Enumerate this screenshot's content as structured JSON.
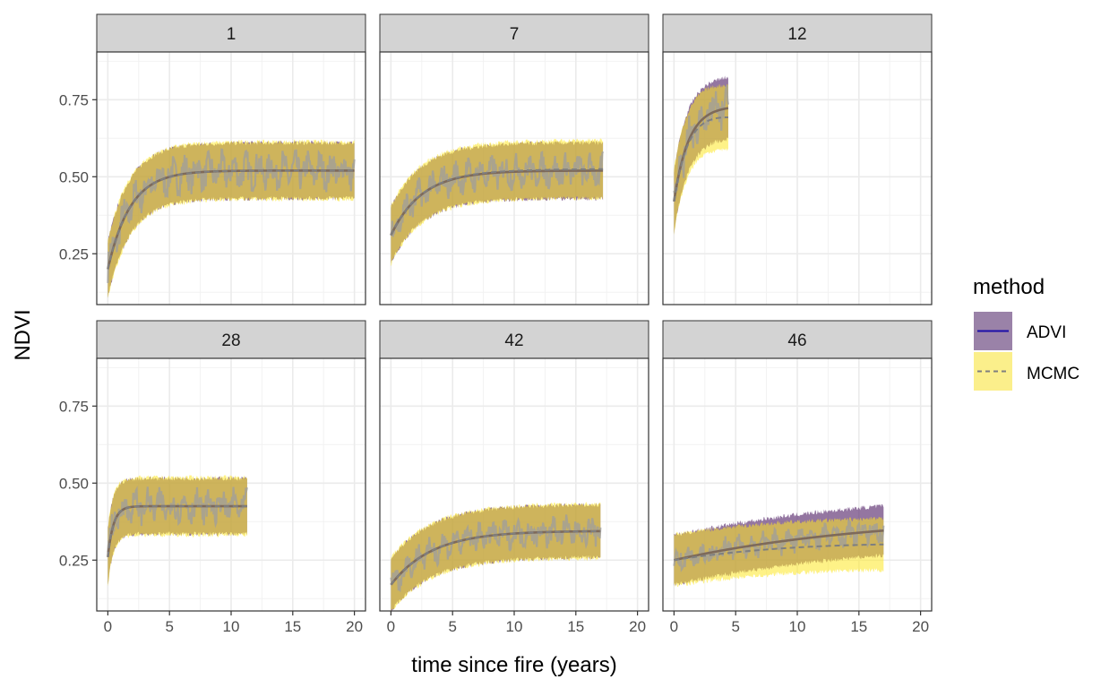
{
  "chart_data": {
    "type": "line",
    "facet_variable": "panel",
    "panels": [
      {
        "label": "1",
        "tmax": 20,
        "start": 0.2,
        "plateau": 0.52,
        "rate": 0.55,
        "noise": 0.045,
        "half": 0.09,
        "dashed_end": 0.52
      },
      {
        "label": "7",
        "tmax": 17.2,
        "start": 0.31,
        "plateau": 0.52,
        "rate": 0.4,
        "noise": 0.04,
        "half": 0.09,
        "dashed_end": 0.525
      },
      {
        "label": "12",
        "tmax": 4.4,
        "start": 0.42,
        "plateau": 0.73,
        "rate": 0.85,
        "noise": 0.05,
        "half": 0.1,
        "dashed_end": 0.7
      },
      {
        "label": "28",
        "tmax": 11.3,
        "start": 0.26,
        "plateau": 0.425,
        "rate": 2.2,
        "noise": 0.04,
        "half": 0.09,
        "dashed_end": 0.425
      },
      {
        "label": "42",
        "tmax": 17,
        "start": 0.17,
        "plateau": 0.345,
        "rate": 0.3,
        "noise": 0.035,
        "half": 0.085,
        "dashed_end": 0.345
      },
      {
        "label": "46",
        "tmax": 17,
        "start": 0.25,
        "plateau": 0.4,
        "rate": 0.06,
        "noise": 0.03,
        "half": 0.08,
        "dashed_end": 0.355
      }
    ],
    "xlabel": "time since fire (years)",
    "ylabel": "NDVI",
    "xlim": [
      -0.9,
      20.9
    ],
    "ylim": [
      0.085,
      0.905
    ],
    "x_ticks": [
      0,
      5,
      10,
      15,
      20
    ],
    "y_ticks": [
      0.25,
      0.5,
      0.75
    ],
    "y_tick_labels": [
      "0.25",
      "0.50",
      "0.75"
    ],
    "grid": true,
    "legend": {
      "title": "method",
      "position": "right",
      "entries": [
        {
          "name": "ADVI",
          "fill": "#5b2c6f",
          "line_color": "#1c0ea8",
          "dash": "solid"
        },
        {
          "name": "MCMC",
          "fill": "#fde725",
          "line_color": "#7f7f7f",
          "dash": "dashed"
        }
      ]
    },
    "series_colors": {
      "ADVI_fill": "#7b5a8e",
      "MCMC_fill": "#fde725",
      "overlap_fill": "#c6a94a",
      "observed_line": "#9e9e9e",
      "fitted_line": "#7e6a5a"
    }
  }
}
